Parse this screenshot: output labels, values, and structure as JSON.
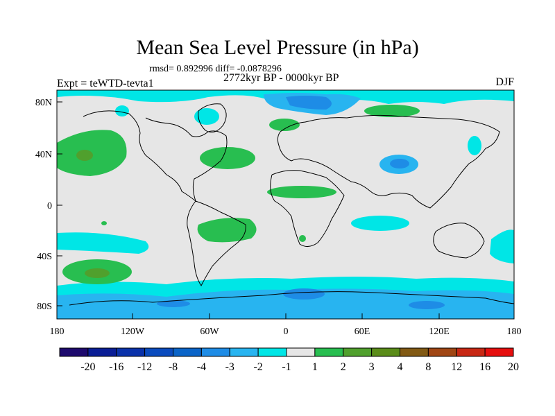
{
  "title": "Mean Sea Level Pressure (in hPa)",
  "stats_line": "rmsd= 0.892996 diff= -0.0878296",
  "period": "2772kyr BP - 0000kyr BP",
  "experiment": "Expt = teWTD-tevta1",
  "season": "DJF",
  "lat_labels": [
    "80N",
    "40N",
    "0",
    "40S",
    "80S"
  ],
  "lon_labels": [
    "180",
    "120W",
    "60W",
    "0",
    "60E",
    "120E",
    "180"
  ],
  "colorbar_labels": [
    "-20",
    "-16",
    "-12",
    "-8",
    "-4",
    "-3",
    "-2",
    "-1",
    "1",
    "2",
    "3",
    "4",
    "8",
    "12",
    "16",
    "20"
  ],
  "colorbar_colors": [
    "#1e0a6e",
    "#0a1e96",
    "#0a32aa",
    "#0a4bbe",
    "#0a64c8",
    "#1e8ce6",
    "#28b4f0",
    "#00e6e6",
    "#e6e6e6",
    "#28be50",
    "#50a02d",
    "#5a8c19",
    "#825a14",
    "#a04614",
    "#c82814",
    "#e60f0f"
  ],
  "neutral_color": "#e6e6e6"
}
